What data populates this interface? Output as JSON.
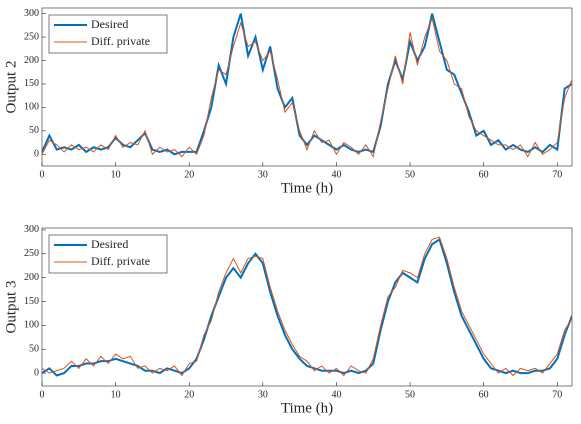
{
  "chart_data": [
    {
      "type": "line",
      "ylabel": "Output 2",
      "xlabel": "Time (h)",
      "legend": "upper left",
      "x": [
        0,
        1,
        2,
        3,
        4,
        5,
        6,
        7,
        8,
        9,
        10,
        11,
        12,
        13,
        14,
        15,
        16,
        17,
        18,
        19,
        20,
        21,
        22,
        23,
        24,
        25,
        26,
        27,
        28,
        29,
        30,
        31,
        32,
        33,
        34,
        35,
        36,
        37,
        38,
        39,
        40,
        41,
        42,
        43,
        44,
        45,
        46,
        47,
        48,
        49,
        50,
        51,
        52,
        53,
        54,
        55,
        56,
        57,
        58,
        59,
        60,
        61,
        62,
        63,
        64,
        65,
        66,
        67,
        68,
        69,
        70,
        71,
        72
      ],
      "xlim": [
        0,
        72
      ],
      "xticks": [
        0,
        10,
        20,
        30,
        40,
        50,
        60,
        70
      ],
      "ylim": [
        -25,
        312
      ],
      "yticks": [
        0,
        50,
        100,
        150,
        200,
        250,
        300
      ],
      "series": [
        {
          "name": "Desired",
          "color": "#0072BD",
          "values": [
            5,
            40,
            10,
            15,
            10,
            20,
            5,
            15,
            10,
            15,
            35,
            20,
            15,
            30,
            45,
            10,
            5,
            10,
            0,
            5,
            5,
            5,
            50,
            100,
            190,
            150,
            250,
            300,
            210,
            250,
            180,
            230,
            140,
            100,
            120,
            40,
            20,
            40,
            30,
            20,
            10,
            20,
            10,
            5,
            10,
            5,
            60,
            150,
            200,
            160,
            240,
            200,
            230,
            300,
            240,
            180,
            170,
            130,
            90,
            40,
            50,
            20,
            30,
            10,
            20,
            10,
            5,
            15,
            5,
            20,
            10,
            140,
            150
          ]
        },
        {
          "name": "Diff. private",
          "color": "#D95319",
          "values": [
            0,
            30,
            20,
            5,
            20,
            10,
            15,
            5,
            20,
            10,
            40,
            15,
            25,
            20,
            50,
            0,
            15,
            5,
            10,
            -5,
            15,
            0,
            40,
            120,
            180,
            170,
            230,
            280,
            230,
            240,
            200,
            220,
            160,
            90,
            110,
            50,
            10,
            50,
            25,
            30,
            0,
            25,
            15,
            0,
            20,
            -5,
            70,
            140,
            210,
            150,
            260,
            190,
            250,
            290,
            220,
            200,
            150,
            140,
            80,
            50,
            40,
            30,
            20,
            20,
            10,
            20,
            -5,
            25,
            0,
            10,
            25,
            120,
            160
          ]
        }
      ]
    },
    {
      "type": "line",
      "ylabel": "Output 3",
      "xlabel": "Time (h)",
      "legend": "upper left",
      "x": [
        0,
        1,
        2,
        3,
        4,
        5,
        6,
        7,
        8,
        9,
        10,
        11,
        12,
        13,
        14,
        15,
        16,
        17,
        18,
        19,
        20,
        21,
        22,
        23,
        24,
        25,
        26,
        27,
        28,
        29,
        30,
        31,
        32,
        33,
        34,
        35,
        36,
        37,
        38,
        39,
        40,
        41,
        42,
        43,
        44,
        45,
        46,
        47,
        48,
        49,
        50,
        51,
        52,
        53,
        54,
        55,
        56,
        57,
        58,
        59,
        60,
        61,
        62,
        63,
        64,
        65,
        66,
        67,
        68,
        69,
        70,
        71,
        72
      ],
      "xlim": [
        0,
        72
      ],
      "xticks": [
        0,
        10,
        20,
        30,
        40,
        50,
        60,
        70
      ],
      "ylim": [
        -27,
        304
      ],
      "yticks": [
        0,
        50,
        100,
        150,
        200,
        250,
        300
      ],
      "series": [
        {
          "name": "Desired",
          "color": "#0072BD",
          "values": [
            0,
            10,
            -5,
            0,
            15,
            15,
            20,
            20,
            25,
            25,
            30,
            25,
            20,
            15,
            5,
            5,
            0,
            10,
            5,
            0,
            10,
            30,
            70,
            120,
            160,
            200,
            220,
            200,
            230,
            250,
            230,
            170,
            120,
            80,
            50,
            30,
            15,
            10,
            5,
            5,
            5,
            0,
            5,
            0,
            5,
            20,
            90,
            150,
            190,
            210,
            200,
            190,
            240,
            270,
            280,
            230,
            170,
            120,
            90,
            60,
            30,
            10,
            5,
            0,
            5,
            0,
            0,
            5,
            5,
            10,
            30,
            80,
            120
          ]
        },
        {
          "name": "Diff. private",
          "color": "#D95319",
          "values": [
            10,
            0,
            5,
            10,
            25,
            10,
            30,
            15,
            35,
            20,
            40,
            30,
            35,
            10,
            15,
            0,
            10,
            5,
            15,
            -5,
            20,
            25,
            80,
            110,
            170,
            210,
            240,
            210,
            240,
            245,
            240,
            180,
            130,
            90,
            60,
            35,
            25,
            5,
            15,
            0,
            10,
            -5,
            15,
            5,
            0,
            30,
            100,
            160,
            180,
            215,
            210,
            200,
            250,
            280,
            285,
            240,
            180,
            130,
            100,
            70,
            40,
            20,
            0,
            10,
            -5,
            10,
            5,
            10,
            0,
            20,
            40,
            90,
            115
          ]
        }
      ]
    }
  ]
}
